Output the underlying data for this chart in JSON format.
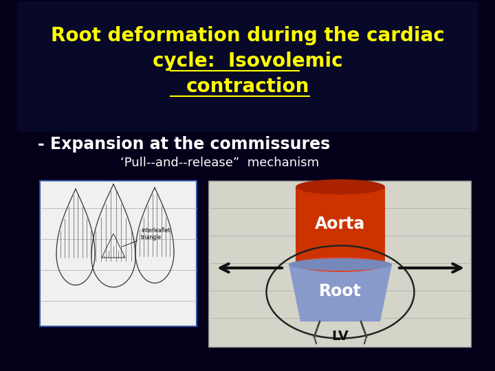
{
  "bg_color": "#05001a",
  "title_line1": "Root deformation during the cardiac",
  "title_line2": "cycle:  Isovolemic",
  "title_line3": "contraction",
  "title_color": "#ffff00",
  "title_fontsize": 20,
  "subtitle1": "- Expansion at the commissures",
  "subtitle1_color": "#ffffff",
  "subtitle1_fontsize": 17,
  "subtitle2": "‘Pull--and--release”  mechanism",
  "subtitle2_color": "#ffffff",
  "subtitle2_fontsize": 13,
  "aorta_color": "#cc3300",
  "aorta_dark_color": "#aa2200",
  "aorta_light_color": "#dd4422",
  "root_color": "#8899cc",
  "root_dark_color": "#7788bb",
  "aorta_label": "Aorta",
  "root_label": "Root",
  "lv_label": "LV",
  "label_white": "#ffffff",
  "lv_color": "#111111",
  "arrow_color": "#111111",
  "box_right_color": "#d4d4c8",
  "underline_color": "#ffff00"
}
